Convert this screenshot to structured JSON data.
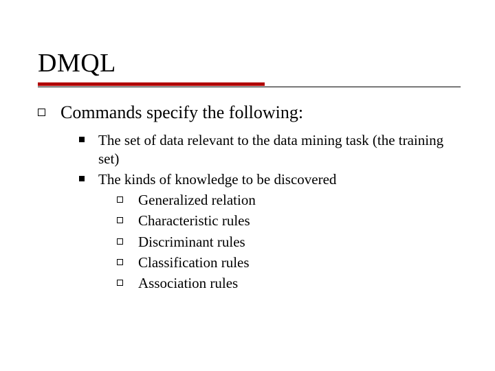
{
  "colors": {
    "background": "#ffffff",
    "text": "#000000",
    "accent_rule": "#b00000",
    "thin_rule": "#000000"
  },
  "typography": {
    "family": "Times New Roman",
    "title_fontsize": 38,
    "lvl1_fontsize": 26,
    "lvl2_fontsize": 21,
    "lvl3_fontsize": 21
  },
  "layout": {
    "slide_width": 720,
    "slide_height": 540,
    "rule_red_width": 330,
    "rule_red_height": 5,
    "rule_thin_width": 615,
    "rule_thin_height": 1
  },
  "bullets": {
    "lvl1": {
      "shape": "hollow-square",
      "size": 11,
      "border": 1.5,
      "color": "#000000"
    },
    "lvl2": {
      "shape": "filled-square",
      "size": 8,
      "color": "#000000"
    },
    "lvl3": {
      "shape": "hollow-square",
      "size": 9,
      "border": 1.5,
      "color": "#000000"
    }
  },
  "title": "DMQL",
  "content": {
    "lvl1_text": "Commands specify the following:",
    "items": [
      {
        "text": "The set of data relevant to the data mining task (the training set)"
      },
      {
        "text": "The kinds of knowledge to be discovered",
        "sub": [
          "Generalized relation",
          "Characteristic rules",
          "Discriminant rules",
          "Classification rules",
          "Association rules"
        ]
      }
    ]
  }
}
